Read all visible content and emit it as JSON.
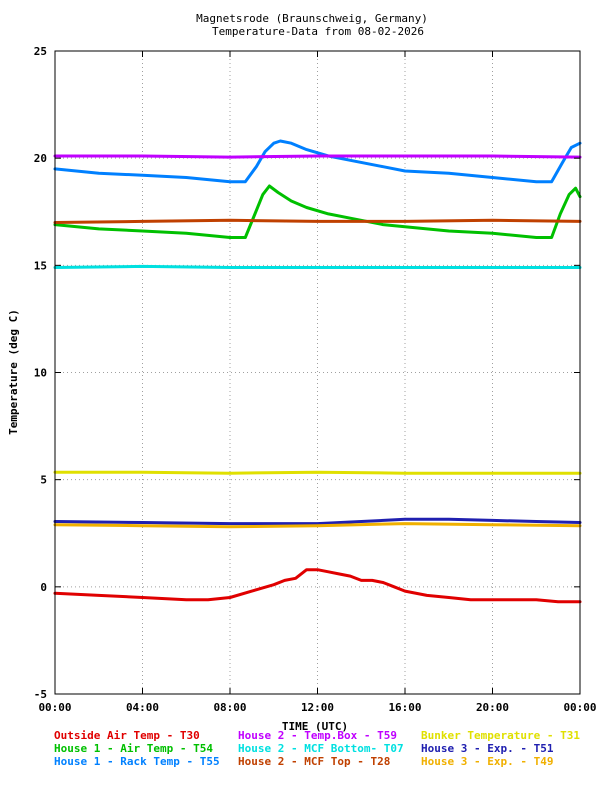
{
  "chart_data": {
    "type": "line",
    "title": "Magnetsrode (Braunschweig, Germany)",
    "subtitle": "Temperature-Data from 08-02-2026",
    "xlabel": "TIME (UTC)",
    "ylabel": "Temperature (deg C)",
    "ylim": [
      -5,
      25
    ],
    "yticks": [
      -5,
      0,
      5,
      10,
      15,
      20,
      25
    ],
    "xlim": [
      0,
      24
    ],
    "xticks": [
      0,
      4,
      8,
      12,
      16,
      20,
      24
    ],
    "xtick_labels": [
      "00:00",
      "04:00",
      "08:00",
      "12:00",
      "16:00",
      "20:00",
      "00:00"
    ],
    "grid": true,
    "legend_position": "bottom",
    "series": [
      {
        "name": "Outside Air Temp",
        "code": "T30",
        "color": "#e00000",
        "x": [
          0,
          2,
          4,
          6,
          7,
          8,
          9,
          10,
          10.5,
          11,
          11.5,
          12,
          12.5,
          13,
          13.5,
          14,
          14.5,
          15,
          15.5,
          16,
          17,
          18,
          19,
          20,
          21,
          22,
          23,
          24
        ],
        "y": [
          -0.3,
          -0.4,
          -0.5,
          -0.6,
          -0.6,
          -0.5,
          -0.2,
          0.1,
          0.3,
          0.4,
          0.8,
          0.8,
          0.7,
          0.6,
          0.5,
          0.3,
          0.3,
          0.2,
          0.0,
          -0.2,
          -0.4,
          -0.5,
          -0.6,
          -0.6,
          -0.6,
          -0.6,
          -0.7,
          -0.7
        ]
      },
      {
        "name": "House 1 - Air  Temp",
        "code": "T54",
        "color": "#00c000",
        "x": [
          0,
          2,
          4,
          6,
          8,
          8.7,
          9.1,
          9.5,
          9.8,
          10.2,
          10.8,
          11.5,
          12.5,
          13.5,
          15,
          16,
          18,
          20,
          22,
          22.7,
          23.1,
          23.5,
          23.8,
          24
        ],
        "y": [
          16.9,
          16.7,
          16.6,
          16.5,
          16.3,
          16.3,
          17.3,
          18.3,
          18.7,
          18.4,
          18.0,
          17.7,
          17.4,
          17.2,
          16.9,
          16.8,
          16.6,
          16.5,
          16.3,
          16.3,
          17.4,
          18.3,
          18.6,
          18.2
        ]
      },
      {
        "name": "House 1 - Rack Temp",
        "code": "T55",
        "color": "#0080ff",
        "x": [
          0,
          2,
          4,
          6,
          8,
          8.7,
          9.2,
          9.6,
          10,
          10.3,
          10.8,
          11.5,
          12.5,
          13.5,
          15,
          16,
          18,
          20,
          22,
          22.7,
          23.2,
          23.6,
          24
        ],
        "y": [
          19.5,
          19.3,
          19.2,
          19.1,
          18.9,
          18.9,
          19.6,
          20.3,
          20.7,
          20.8,
          20.7,
          20.4,
          20.1,
          19.9,
          19.6,
          19.4,
          19.3,
          19.1,
          18.9,
          18.9,
          19.8,
          20.5,
          20.7
        ]
      },
      {
        "name": "House 2 - Temp.Box",
        "code": "T59",
        "color": "#c000ff",
        "x": [
          0,
          4,
          8,
          12,
          16,
          20,
          24
        ],
        "y": [
          20.1,
          20.1,
          20.05,
          20.1,
          20.1,
          20.1,
          20.05
        ]
      },
      {
        "name": "House 2 - MCF Bottom",
        "code": "T07",
        "color": "#00e0e0",
        "x": [
          0,
          4,
          8,
          12,
          16,
          20,
          24
        ],
        "y": [
          14.9,
          14.95,
          14.9,
          14.9,
          14.9,
          14.9,
          14.9
        ]
      },
      {
        "name": "House 2 - MCF Top",
        "code": "T28",
        "color": "#c04000",
        "x": [
          0,
          4,
          8,
          12,
          16,
          20,
          24
        ],
        "y": [
          17.0,
          17.05,
          17.1,
          17.05,
          17.05,
          17.1,
          17.05
        ]
      },
      {
        "name": "Bunker Temperature",
        "code": "T31",
        "color": "#e0e000",
        "x": [
          0,
          4,
          8,
          12,
          16,
          20,
          24
        ],
        "y": [
          5.35,
          5.35,
          5.3,
          5.35,
          5.3,
          5.3,
          5.3
        ]
      },
      {
        "name": "House 3 - Exp.",
        "code": "T51",
        "color": "#2020b0",
        "x": [
          0,
          4,
          8,
          12,
          14,
          16,
          18,
          20,
          22,
          24
        ],
        "y": [
          3.05,
          3.0,
          2.95,
          2.95,
          3.05,
          3.15,
          3.15,
          3.1,
          3.05,
          3.0
        ]
      },
      {
        "name": "House 3 - Exp.",
        "code": "T49",
        "color": "#f0b000",
        "x": [
          0,
          4,
          8,
          12,
          16,
          20,
          24
        ],
        "y": [
          2.9,
          2.85,
          2.8,
          2.85,
          2.95,
          2.9,
          2.85
        ]
      }
    ],
    "legend_rows": [
      [
        {
          "label": "Outside Air Temp    - T30",
          "color": "#e00000"
        },
        {
          "label": "House 2 - Temp.Box  - T59",
          "color": "#c000ff"
        },
        {
          "label": "Bunker Temperature  - T31",
          "color": "#e0e000"
        }
      ],
      [
        {
          "label": "House 1 - Air  Temp - T54",
          "color": "#00c000"
        },
        {
          "label": "House 2 - MCF Bottom- T07",
          "color": "#00e0e0"
        },
        {
          "label": "House 3 - Exp.      - T51",
          "color": "#2020b0"
        }
      ],
      [
        {
          "label": "House 1 - Rack Temp - T55",
          "color": "#0080ff"
        },
        {
          "label": "House 2 - MCF Top   - T28",
          "color": "#c04000"
        },
        {
          "label": "House 3 - Exp.      - T49",
          "color": "#f0b000"
        }
      ]
    ]
  }
}
